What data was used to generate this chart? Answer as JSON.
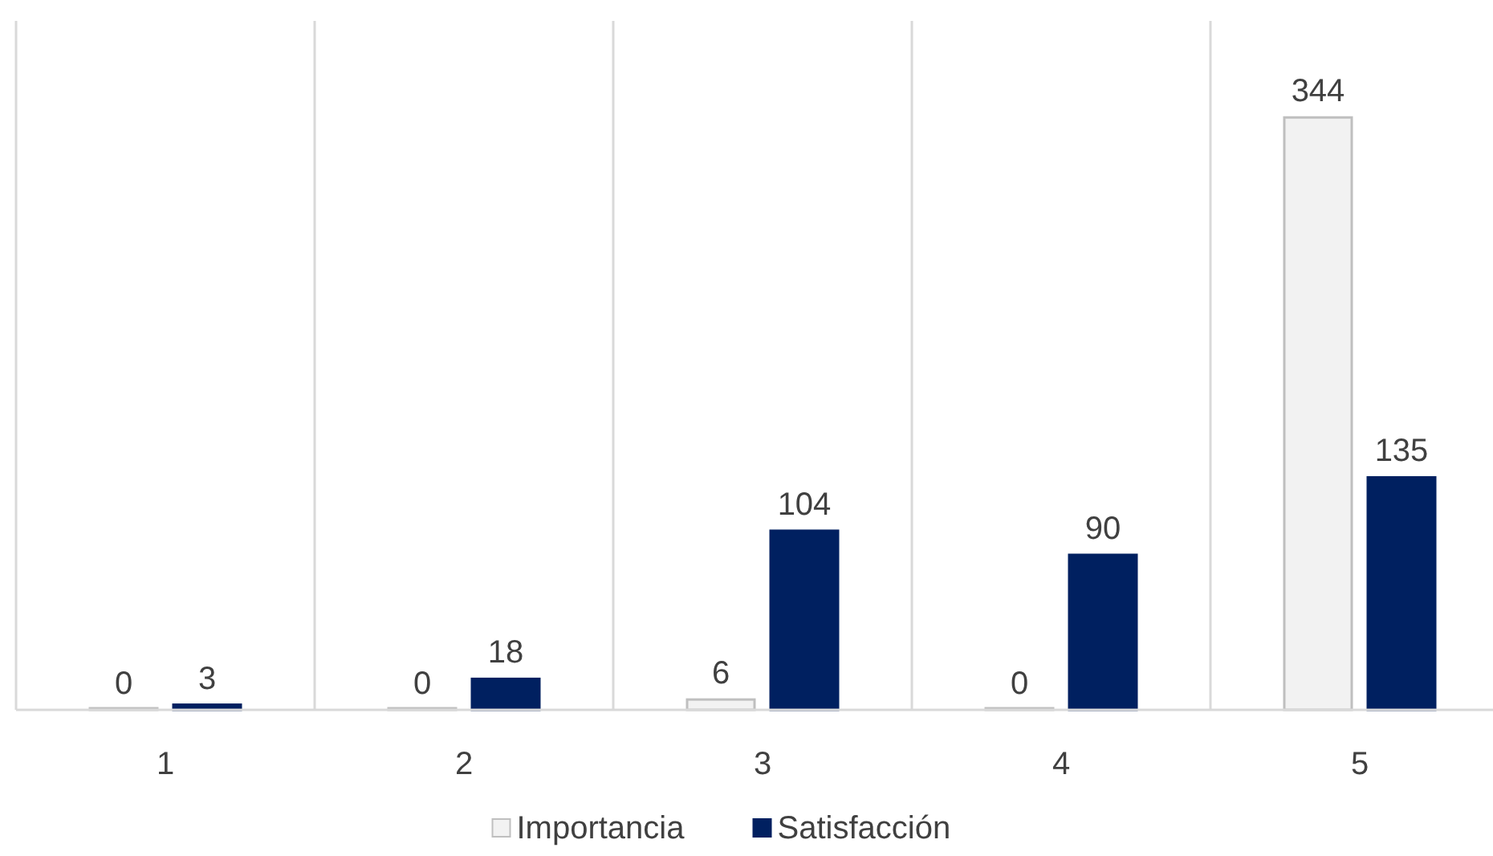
{
  "chart_data": {
    "type": "bar",
    "categories": [
      "1",
      "2",
      "3",
      "4",
      "5"
    ],
    "series": [
      {
        "name": "Importancia",
        "color": "#f2f2f2",
        "values": [
          0,
          0,
          6,
          0,
          344
        ]
      },
      {
        "name": "Satisfacción",
        "color": "#002060",
        "values": [
          3,
          18,
          104,
          90,
          135
        ]
      }
    ],
    "data_labels": true,
    "grid": "x",
    "legend": "bottom"
  }
}
